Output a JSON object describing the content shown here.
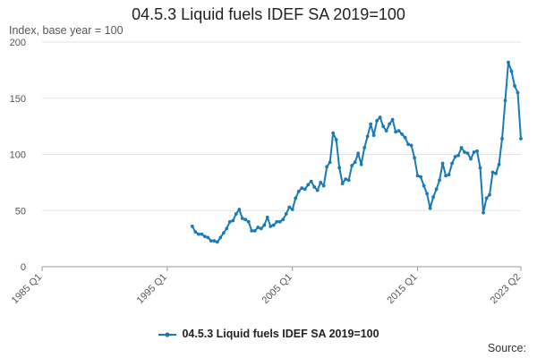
{
  "chart_data": {
    "type": "line",
    "title": "04.5.3 Liquid fuels IDEF SA 2019=100",
    "ylabel": "Index, base year = 100",
    "xlabel": "",
    "x_tick_labels": [
      "1985 Q1",
      "1995 Q1",
      "2005 Q1",
      "2015 Q1",
      "2023 Q2"
    ],
    "x_tick_values": [
      1985.0,
      1995.0,
      2005.0,
      2015.0,
      2023.25
    ],
    "x_range": [
      1985.0,
      2023.25
    ],
    "ylim": [
      0,
      200
    ],
    "y_ticks": [
      0,
      50,
      100,
      150,
      200
    ],
    "grid": "horizontal",
    "legend_position": "bottom",
    "series": [
      {
        "name": "04.5.3 Liquid fuels IDEF SA 2019=100",
        "color": "#1a7ab5",
        "x": [
          1997.0,
          1997.25,
          1997.5,
          1997.75,
          1998.0,
          1998.25,
          1998.5,
          1998.75,
          1999.0,
          1999.25,
          1999.5,
          1999.75,
          2000.0,
          2000.25,
          2000.5,
          2000.75,
          2001.0,
          2001.25,
          2001.5,
          2001.75,
          2002.0,
          2002.25,
          2002.5,
          2002.75,
          2003.0,
          2003.25,
          2003.5,
          2003.75,
          2004.0,
          2004.25,
          2004.5,
          2004.75,
          2005.0,
          2005.25,
          2005.5,
          2005.75,
          2006.0,
          2006.25,
          2006.5,
          2006.75,
          2007.0,
          2007.25,
          2007.5,
          2007.75,
          2008.0,
          2008.25,
          2008.5,
          2008.75,
          2009.0,
          2009.25,
          2009.5,
          2009.75,
          2010.0,
          2010.25,
          2010.5,
          2010.75,
          2011.0,
          2011.25,
          2011.5,
          2011.75,
          2012.0,
          2012.25,
          2012.5,
          2012.75,
          2013.0,
          2013.25,
          2013.5,
          2013.75,
          2014.0,
          2014.25,
          2014.5,
          2014.75,
          2015.0,
          2015.25,
          2015.5,
          2015.75,
          2016.0,
          2016.25,
          2016.5,
          2016.75,
          2017.0,
          2017.25,
          2017.5,
          2017.75,
          2018.0,
          2018.25,
          2018.5,
          2018.75,
          2019.0,
          2019.25,
          2019.5,
          2019.75,
          2020.0,
          2020.25,
          2020.5,
          2020.75,
          2021.0,
          2021.25,
          2021.5,
          2021.75,
          2022.0,
          2022.25,
          2022.5,
          2022.75,
          2023.0,
          2023.25
        ],
        "values": [
          36,
          31,
          29,
          29,
          27,
          26,
          23,
          23,
          22,
          26,
          30,
          34,
          40,
          41,
          47,
          51,
          43,
          42,
          40,
          32,
          32,
          35,
          34,
          37,
          44,
          36,
          37,
          40,
          40,
          42,
          47,
          53,
          51,
          61,
          67,
          70,
          69,
          73,
          76,
          71,
          68,
          75,
          72,
          89,
          93,
          119,
          113,
          88,
          74,
          78,
          77,
          90,
          93,
          101,
          91,
          106,
          116,
          127,
          117,
          130,
          133,
          125,
          121,
          127,
          131,
          120,
          121,
          118,
          115,
          109,
          108,
          97,
          81,
          80,
          72,
          65,
          52,
          62,
          69,
          77,
          92,
          81,
          82,
          92,
          98,
          99,
          106,
          102,
          101,
          96,
          102,
          103,
          88,
          48,
          61,
          64,
          84,
          83,
          91,
          114,
          148,
          182,
          174,
          161,
          155,
          114
        ]
      }
    ]
  },
  "legend": {
    "label": "04.5.3 Liquid fuels IDEF SA 2019=100"
  },
  "source": {
    "label": "Source:"
  }
}
